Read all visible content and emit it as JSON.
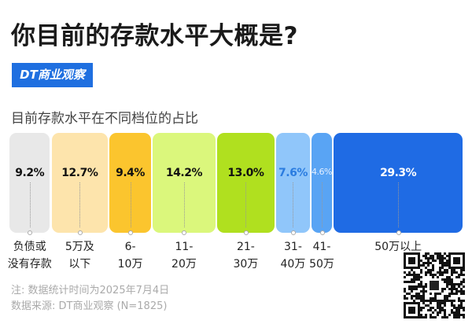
{
  "title": "你目前的存款水平大概是?",
  "logo": "DT商业观察",
  "chart_data": {
    "type": "bar",
    "orientation": "stacked-horizontal-100",
    "title": "目前存款水平在不同档位的占比",
    "categories": [
      "负债或\n没有存款",
      "5万及\n以下",
      "6-\n10万",
      "11-\n20万",
      "21-\n30万",
      "31-\n40万",
      "41-\n50万",
      "50万以上"
    ],
    "values": [
      9.2,
      12.7,
      9.4,
      14.2,
      13.0,
      7.6,
      4.6,
      29.3
    ],
    "value_labels": [
      "9.2%",
      "12.7%",
      "9.4%",
      "14.2%",
      "13.0%",
      "7.6%",
      "4.6%",
      "29.3%"
    ],
    "colors": [
      "#e8e8e8",
      "#fde4ac",
      "#fbc52e",
      "#dbf77c",
      "#b0e01f",
      "#90c6fa",
      "#59a4f4",
      "#1f6be4"
    ],
    "label_colors": [
      "#111111",
      "#111111",
      "#111111",
      "#111111",
      "#111111",
      "#2a7ce0",
      "#e6f0ff",
      "#ffffff"
    ],
    "unit": "%"
  },
  "footer": {
    "note": "注: 数据统计时间为2025年7月4日",
    "source": "数据来源: DT商业观察 (N=1825)"
  }
}
